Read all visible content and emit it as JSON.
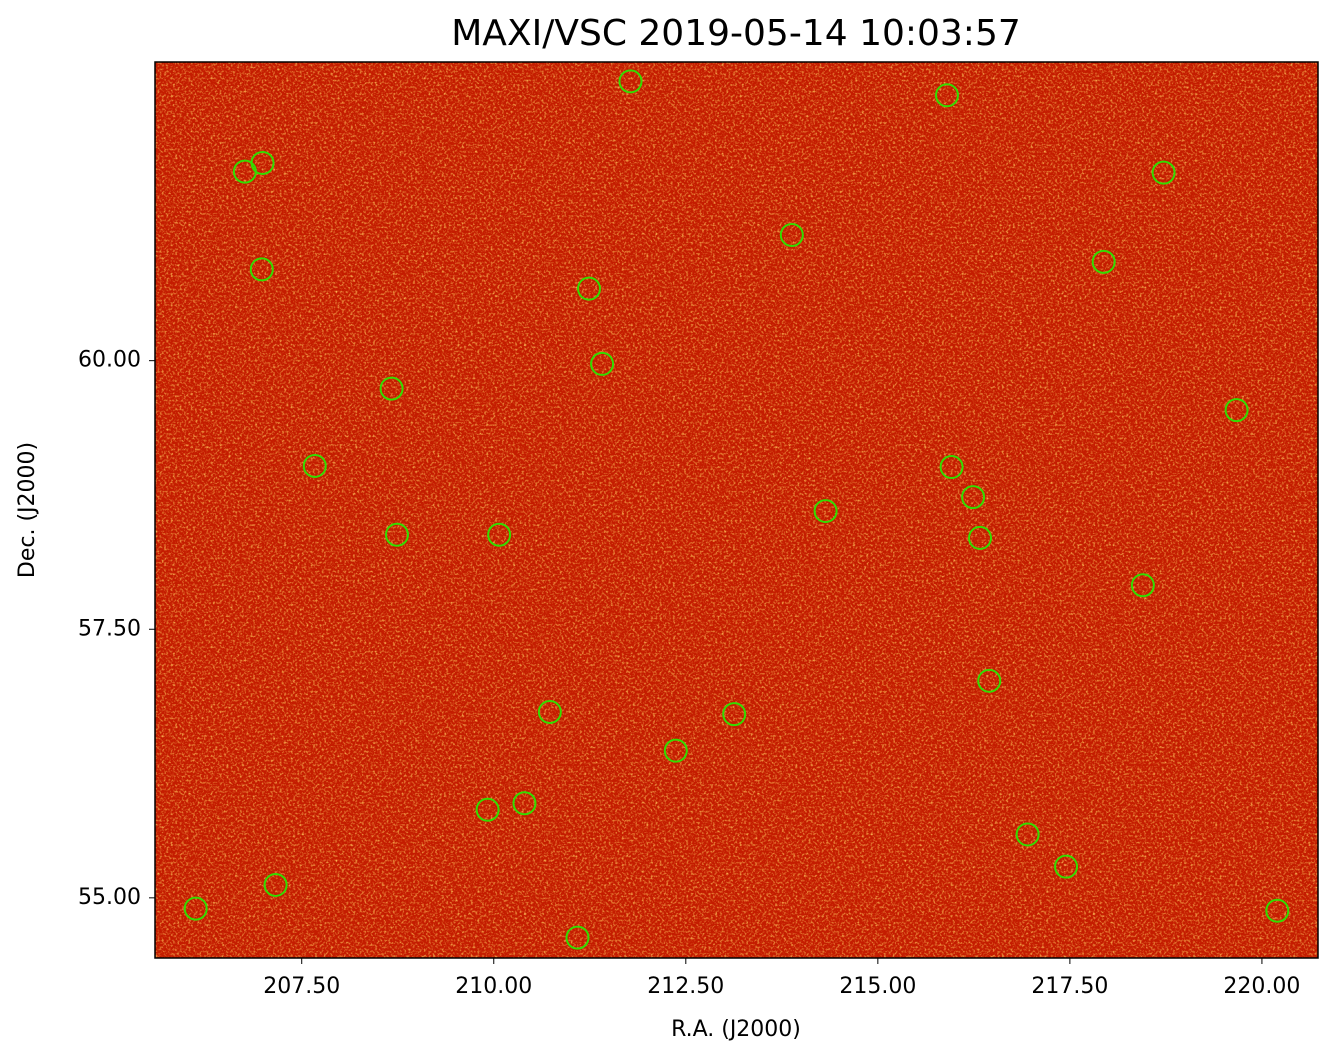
{
  "chart_data": {
    "type": "scatter",
    "title": "MAXI/VSC 2019-05-14 10:03:57",
    "x_label": "R.A. (J2000)",
    "y_label": "Dec. (J2000)",
    "xlim": [
      205.59,
      220.73
    ],
    "ylim": [
      54.44,
      62.78
    ],
    "xticks": [
      {
        "value": 207.5,
        "label": "207.50"
      },
      {
        "value": 210,
        "label": "210.00"
      },
      {
        "value": 212.5,
        "label": "212.50"
      },
      {
        "value": 215,
        "label": "215.00"
      },
      {
        "value": 217.5,
        "label": "217.50"
      },
      {
        "value": 220,
        "label": "220.00"
      }
    ],
    "yticks": [
      {
        "value": 55,
        "label": "55.00"
      },
      {
        "value": 57.5,
        "label": "57.50"
      },
      {
        "value": 60,
        "label": "60.00"
      }
    ],
    "series": [
      {
        "color": "#33dd00",
        "x": [
          211.78,
          215.9,
          206.99,
          206.76,
          218.72,
          213.88,
          217.94,
          206.98,
          211.24,
          211.41,
          208.67,
          219.67,
          207.67,
          215.96,
          216.24,
          214.32,
          208.74,
          210.07,
          216.33,
          218.45,
          216.45,
          210.73,
          213.13,
          212.37,
          210.4,
          209.92,
          216.95,
          217.45,
          207.16,
          206.12,
          220.2,
          211.09
        ],
        "y": [
          62.6,
          62.47,
          61.84,
          61.76,
          61.75,
          61.17,
          60.92,
          60.85,
          60.67,
          59.97,
          59.74,
          59.54,
          59.02,
          59.01,
          58.73,
          58.6,
          58.38,
          58.38,
          58.35,
          57.91,
          57.02,
          56.73,
          56.71,
          56.37,
          55.88,
          55.82,
          55.59,
          55.29,
          55.12,
          54.9,
          54.88,
          54.63
        ]
      }
    ]
  }
}
